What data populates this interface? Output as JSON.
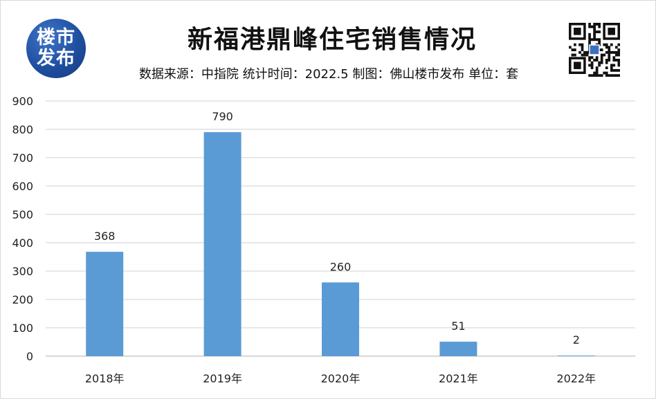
{
  "header": {
    "logo_line1": "楼市",
    "logo_line2": "发布",
    "title": "新福港鼎峰住宅销售情况",
    "subtitle": "数据来源：中指院 统计时间：2022.5  制图：佛山楼市发布  单位：套"
  },
  "colors": {
    "bar": "#5b9bd5",
    "grid": "#d9d9d9",
    "logo": "#1f4fa0"
  },
  "icons": {
    "qr": "qr-code-icon"
  },
  "chart_data": {
    "type": "bar",
    "title": "新福港鼎峰住宅销售情况",
    "categories": [
      "2018年",
      "2019年",
      "2020年",
      "2021年",
      "2022年"
    ],
    "values": [
      368,
      790,
      260,
      51,
      2
    ],
    "ylim": [
      0,
      900
    ],
    "yticks": [
      0,
      100,
      200,
      300,
      400,
      500,
      600,
      700,
      800,
      900
    ],
    "grid": true,
    "legend": "none"
  }
}
